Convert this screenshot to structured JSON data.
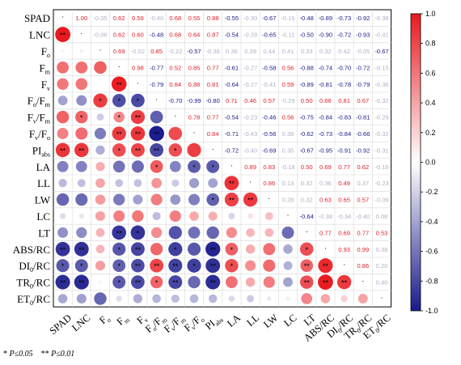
{
  "chart_data": {
    "type": "heatmap",
    "variables": [
      "SPAD",
      "LNC",
      "Fo",
      "Fm",
      "Fv",
      "Fo/Fm",
      "Fv/Fm",
      "Fv/Fo",
      "PIabs",
      "LA",
      "LL",
      "LW",
      "LC",
      "LT",
      "ABS/RC",
      "DIo/RC",
      "TRo/RC",
      "ETo/RC"
    ],
    "row_labels": [
      {
        "main": "SPAD",
        "sub": "",
        "rest": ""
      },
      {
        "main": "LNC",
        "sub": "",
        "rest": ""
      },
      {
        "main": "F",
        "sub": "o",
        "rest": ""
      },
      {
        "main": "F",
        "sub": "m",
        "rest": ""
      },
      {
        "main": "F",
        "sub": "v",
        "rest": ""
      },
      {
        "main": "F",
        "sub": "o",
        "rest": "/F",
        "sub2": "m"
      },
      {
        "main": "F",
        "sub": "v",
        "rest": "/F",
        "sub2": "m"
      },
      {
        "main": "F",
        "sub": "v",
        "rest": "/F",
        "sub2": "o"
      },
      {
        "main": "PI",
        "sub": "abs",
        "rest": ""
      },
      {
        "main": "LA",
        "sub": "",
        "rest": ""
      },
      {
        "main": "LL",
        "sub": "",
        "rest": ""
      },
      {
        "main": "LW",
        "sub": "",
        "rest": ""
      },
      {
        "main": "LC",
        "sub": "",
        "rest": ""
      },
      {
        "main": "LT",
        "sub": "",
        "rest": ""
      },
      {
        "main": "ABS/RC",
        "sub": "",
        "rest": ""
      },
      {
        "main": "DI",
        "sub": "0",
        "rest": "/RC"
      },
      {
        "main": "TR",
        "sub": "0",
        "rest": "/RC"
      },
      {
        "main": "ET",
        "sub": "0",
        "rest": "/RC"
      }
    ],
    "upper_values": [
      [
        null,
        1.0,
        -0.05,
        0.62,
        0.59,
        -0.4,
        0.68,
        0.55,
        0.88,
        -0.55,
        -0.3,
        -0.67,
        -0.15,
        -0.48,
        -0.89,
        -0.73,
        -0.92,
        -0.38
      ],
      [
        null,
        null,
        -0.06,
        0.62,
        0.6,
        -0.48,
        0.68,
        0.64,
        0.87,
        -0.54,
        -0.28,
        -0.65,
        -0.11,
        -0.5,
        -0.9,
        -0.72,
        -0.93,
        -0.41
      ],
      [
        null,
        null,
        null,
        0.69,
        -0.02,
        0.85,
        -0.22,
        -0.57,
        -0.36,
        0.36,
        0.39,
        0.44,
        0.41,
        0.33,
        0.32,
        0.42,
        -0.05,
        -0.67
      ],
      [
        null,
        null,
        null,
        null,
        0.98,
        -0.77,
        0.52,
        0.85,
        0.77,
        -0.61,
        -0.27,
        -0.58,
        0.56,
        -0.88,
        -0.74,
        -0.7,
        -0.72,
        -0.15
      ],
      [
        null,
        null,
        null,
        null,
        null,
        -0.79,
        0.84,
        0.88,
        0.81,
        -0.64,
        -0.27,
        -0.41,
        0.59,
        -0.89,
        -0.81,
        -0.78,
        -0.79,
        -0.36
      ],
      [
        null,
        null,
        null,
        null,
        null,
        null,
        -0.7,
        -0.99,
        -0.8,
        0.71,
        0.46,
        0.57,
        -0.29,
        0.5,
        0.66,
        0.81,
        0.67,
        -0.32
      ],
      [
        null,
        null,
        null,
        null,
        null,
        null,
        null,
        0.78,
        0.77,
        -0.54,
        -0.23,
        -0.46,
        0.56,
        -0.75,
        -0.84,
        -0.83,
        -0.81,
        -0.29
      ],
      [
        null,
        null,
        null,
        null,
        null,
        null,
        null,
        null,
        0.84,
        -0.71,
        -0.43,
        -0.56,
        0.38,
        -0.62,
        -0.73,
        -0.84,
        -0.66,
        -0.32
      ],
      [
        null,
        null,
        null,
        null,
        null,
        null,
        null,
        null,
        null,
        -0.72,
        -0.4,
        -0.69,
        0.35,
        -0.67,
        -0.95,
        -0.91,
        -0.92,
        -0.31
      ],
      [
        null,
        null,
        null,
        null,
        null,
        null,
        null,
        null,
        null,
        null,
        0.89,
        0.83,
        -0.18,
        0.5,
        0.69,
        0.77,
        0.62,
        -0.16
      ],
      [
        null,
        null,
        null,
        null,
        null,
        null,
        null,
        null,
        null,
        null,
        null,
        0.86,
        0.13,
        0.32,
        0.36,
        0.49,
        0.37,
        -0.23
      ],
      [
        null,
        null,
        null,
        null,
        null,
        null,
        null,
        null,
        null,
        null,
        null,
        null,
        0.28,
        0.32,
        0.63,
        0.65,
        0.57,
        -0.09
      ],
      [
        null,
        null,
        null,
        null,
        null,
        null,
        null,
        null,
        null,
        null,
        null,
        null,
        null,
        -0.64,
        -0.38,
        -0.34,
        -0.4,
        0.08
      ],
      [
        null,
        null,
        null,
        null,
        null,
        null,
        null,
        null,
        null,
        null,
        null,
        null,
        null,
        null,
        0.77,
        0.69,
        0.77,
        0.53
      ],
      [
        null,
        null,
        null,
        null,
        null,
        null,
        null,
        null,
        null,
        null,
        null,
        null,
        null,
        null,
        null,
        0.93,
        0.99,
        0.38
      ],
      [
        null,
        null,
        null,
        null,
        null,
        null,
        null,
        null,
        null,
        null,
        null,
        null,
        null,
        null,
        null,
        null,
        0.86,
        0.2
      ],
      [
        null,
        null,
        null,
        null,
        null,
        null,
        null,
        null,
        null,
        null,
        null,
        null,
        null,
        null,
        null,
        null,
        null,
        0.4
      ],
      [
        null,
        null,
        null,
        null,
        null,
        null,
        null,
        null,
        null,
        null,
        null,
        null,
        null,
        null,
        null,
        null,
        null,
        null
      ]
    ],
    "lower_stars": [
      [
        "",
        "",
        "",
        "",
        "",
        "",
        "",
        "",
        "",
        "",
        "",
        "",
        "",
        "",
        "",
        "",
        "",
        ""
      ],
      [
        "**",
        "",
        "",
        "",
        "",
        "",
        "",
        "",
        "",
        "",
        "",
        "",
        "",
        "",
        "",
        "",
        "",
        ""
      ],
      [
        "",
        "",
        "",
        "",
        "",
        "",
        "",
        "",
        "",
        "",
        "",
        "",
        "",
        "",
        "",
        "",
        "",
        ""
      ],
      [
        "",
        "",
        "",
        "",
        "",
        "",
        "",
        "",
        "",
        "",
        "",
        "",
        "",
        "",
        "",
        "",
        "",
        ""
      ],
      [
        "",
        "",
        "",
        "**",
        "",
        "",
        "",
        "",
        "",
        "",
        "",
        "",
        "",
        "",
        "",
        "",
        "",
        ""
      ],
      [
        "",
        "",
        "*",
        "*",
        "*",
        "",
        "",
        "",
        "",
        "",
        "",
        "",
        "",
        "",
        "",
        "",
        "",
        ""
      ],
      [
        "",
        "*",
        "",
        "*",
        "**",
        "",
        "",
        "",
        "",
        "",
        "",
        "",
        "",
        "",
        "",
        "",
        "",
        ""
      ],
      [
        "",
        "",
        "",
        "**",
        "**",
        "**",
        "",
        "",
        "",
        "",
        "",
        "",
        "",
        "",
        "",
        "",
        "",
        ""
      ],
      [
        "**",
        "**",
        "",
        "*",
        "**",
        "**",
        "*",
        "",
        "",
        "",
        "",
        "",
        "",
        "",
        "",
        "",
        "",
        ""
      ],
      [
        "",
        "",
        "",
        "",
        "",
        "*",
        "",
        "*",
        "*",
        "",
        "",
        "",
        "",
        "",
        "",
        "",
        "",
        ""
      ],
      [
        "",
        "",
        "",
        "",
        "",
        "",
        "",
        "",
        "",
        "**",
        "",
        "",
        "",
        "",
        "",
        "",
        "",
        ""
      ],
      [
        "",
        "",
        "",
        "",
        "",
        "",
        "",
        "",
        "*",
        "**",
        "**",
        "",
        "",
        "",
        "",
        "",
        "",
        ""
      ],
      [
        "",
        "",
        "",
        "",
        "",
        "",
        "",
        "",
        "",
        "",
        "",
        "",
        "",
        "",
        "",
        "",
        "",
        ""
      ],
      [
        "",
        "",
        "",
        "**",
        "*",
        "",
        "",
        "",
        "",
        "",
        "",
        "",
        "",
        "",
        "",
        "",
        "",
        ""
      ],
      [
        "**",
        "**",
        "",
        "*",
        "**",
        "",
        "*",
        "",
        "**",
        "*",
        "",
        "",
        "",
        "*",
        "",
        "",
        "",
        ""
      ],
      [
        "*",
        "*",
        "",
        "*",
        "**",
        "**",
        "**",
        "*",
        "**",
        "*",
        "",
        "",
        "",
        "**",
        "**",
        "",
        "",
        ""
      ],
      [
        "**",
        "**",
        "",
        "*",
        "**",
        "*",
        "**",
        "",
        "**",
        "",
        "",
        "",
        "",
        "**",
        "**",
        "**",
        "",
        ""
      ],
      [
        "",
        "",
        "",
        "",
        "",
        "",
        "",
        "",
        "",
        "",
        "",
        "",
        "",
        "",
        "",
        "",
        "",
        ""
      ]
    ],
    "color_scale": {
      "min": -1.0,
      "max": 1.0,
      "low_color": "#1a1a8c",
      "mid_color": "#ffffff",
      "high_color": "#e8191f"
    },
    "colorbar_ticks": [
      "1.0",
      "0.8",
      "0.6",
      "0.4",
      "0.2",
      "0.0",
      "-0.2",
      "-0.4",
      "-0.6",
      "-0.8",
      "-1.0"
    ],
    "legend_placement": "right"
  },
  "footnote": {
    "single_star": "*",
    "single_text": "P≤0.05",
    "double_star": "**",
    "double_text": "P≤0.01"
  }
}
